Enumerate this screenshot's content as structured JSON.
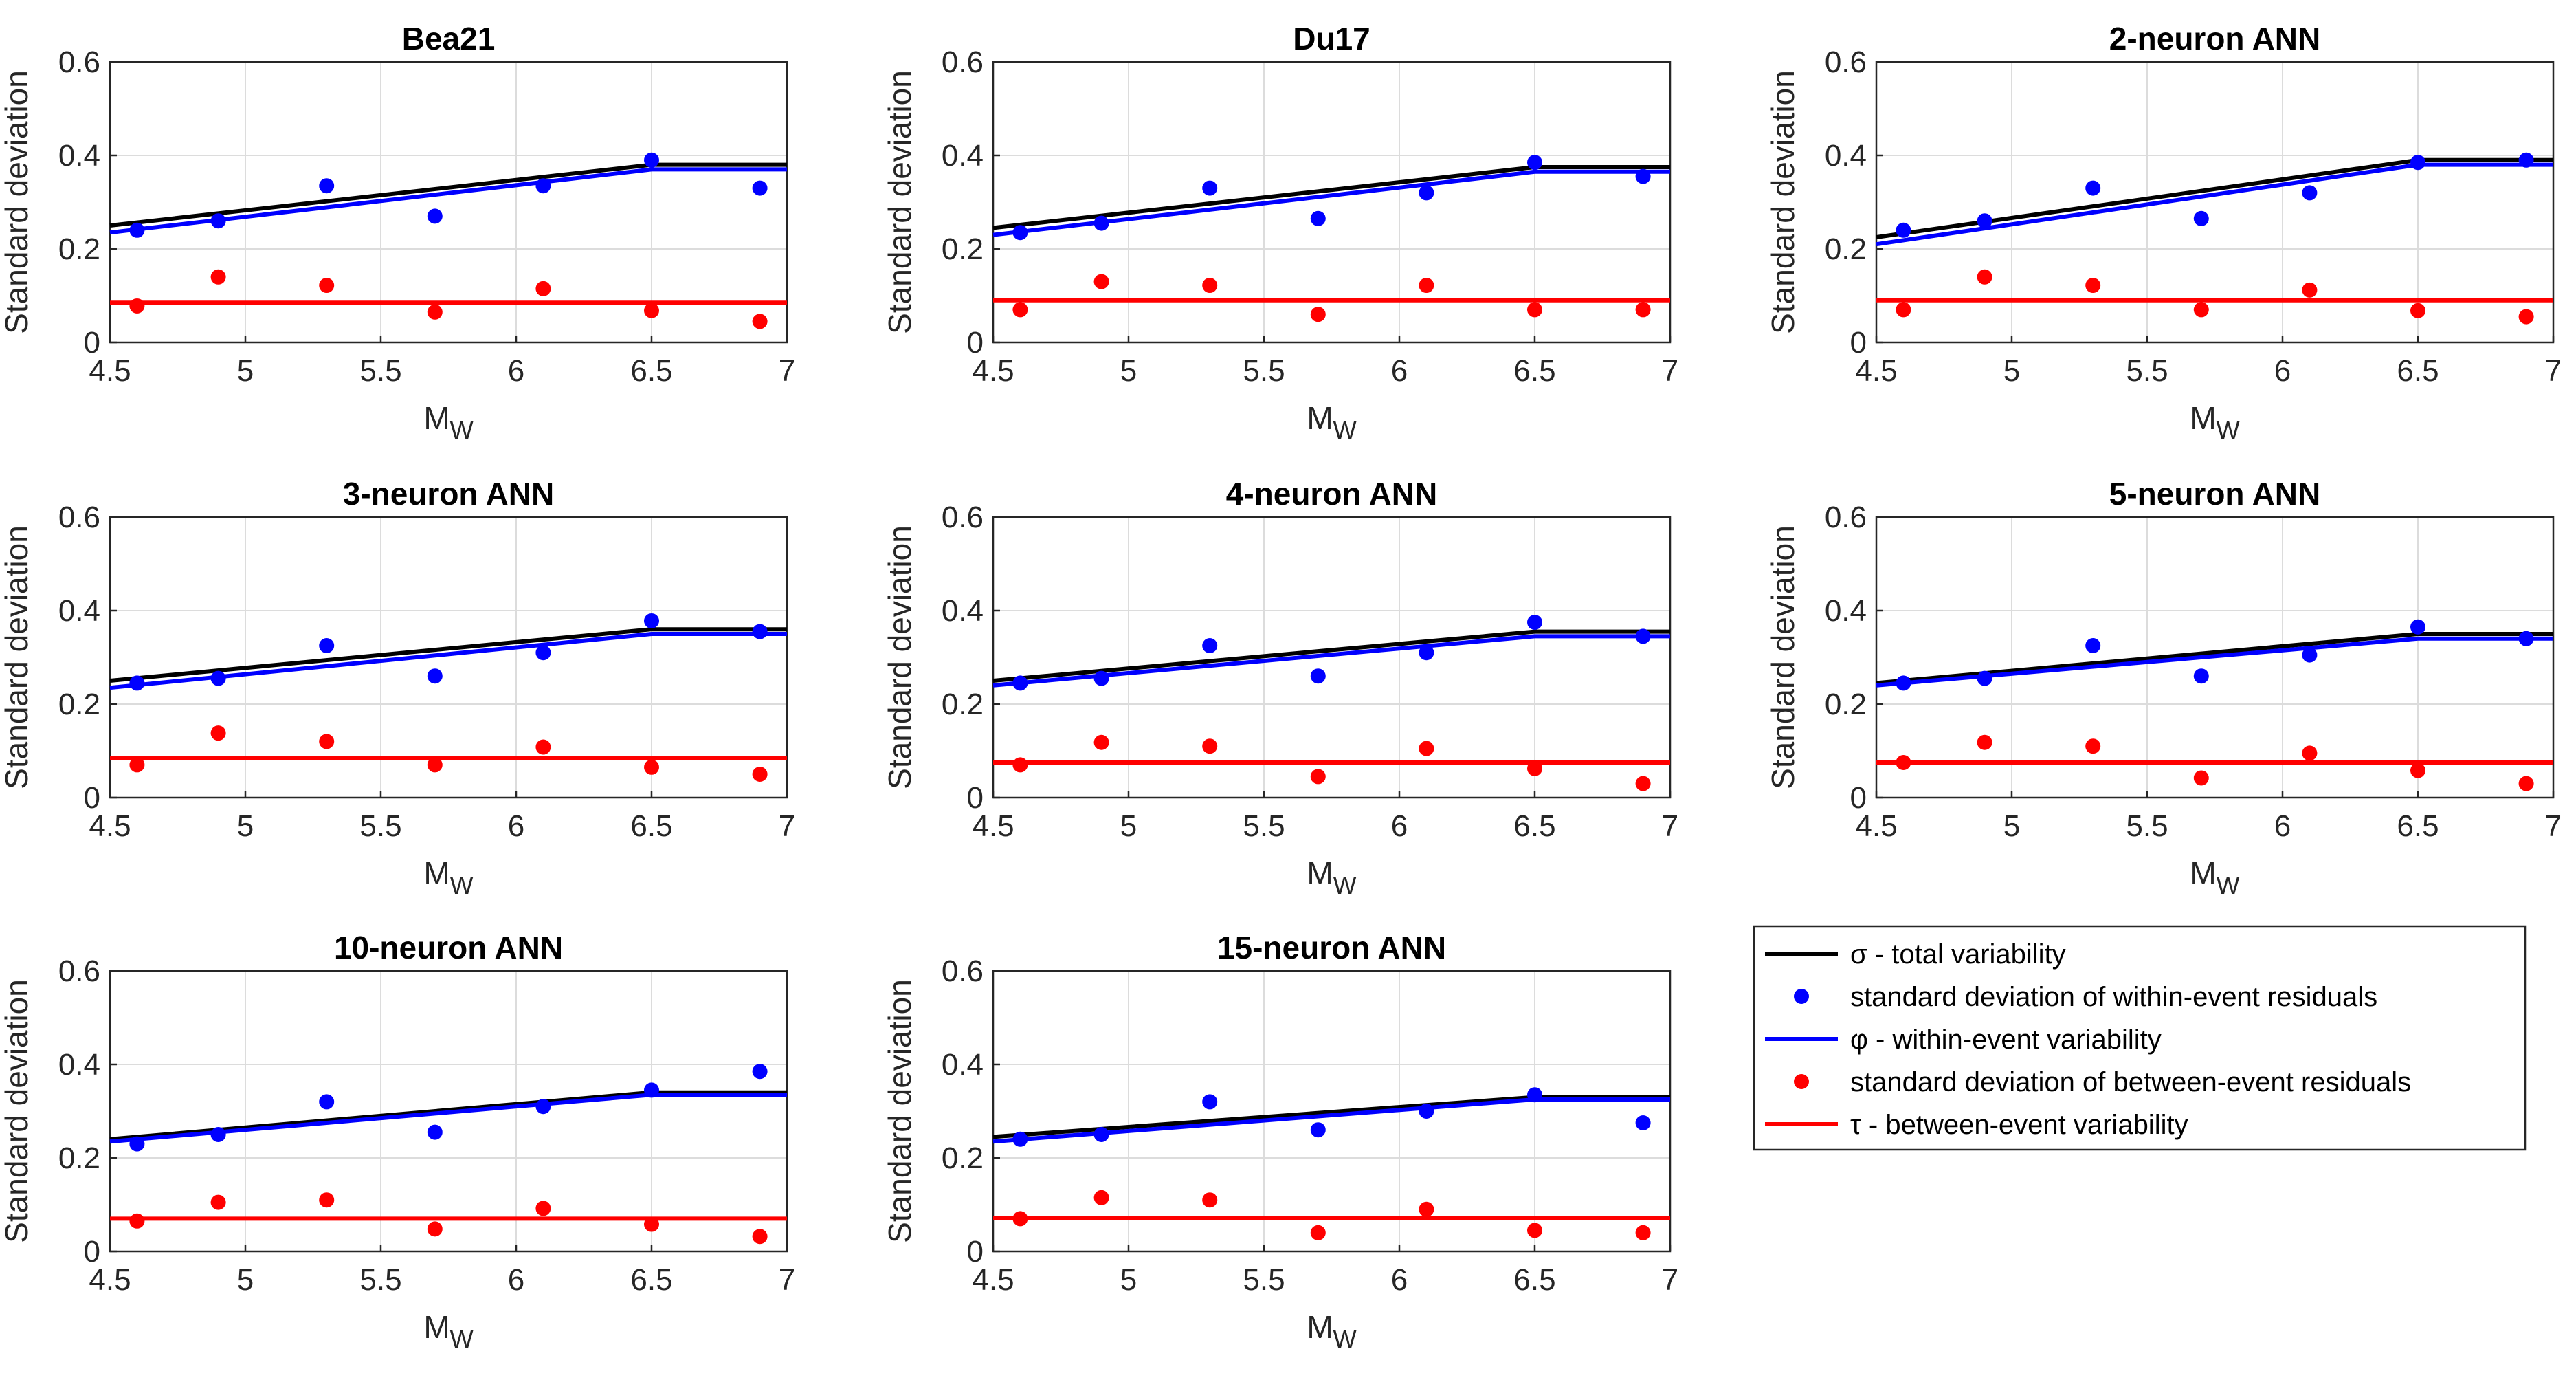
{
  "chart_data": {
    "type": "line",
    "xlim": [
      4.5,
      7
    ],
    "ylim": [
      0,
      0.6
    ],
    "xticks": [
      "4.5",
      "5",
      "5.5",
      "6",
      "6.5",
      "7"
    ],
    "yticks": [
      "0",
      "0.2",
      "0.4",
      "0.6"
    ],
    "xlabel_main": "M",
    "xlabel_sub": "W",
    "ylabel": "Standard deviation",
    "legend": {
      "position": "bottom-right",
      "entries": [
        {
          "label": "σ - total variability",
          "kind": "line",
          "color": "#000000"
        },
        {
          "label": "standard deviation of within-event residuals",
          "kind": "marker",
          "color": "#0000ff"
        },
        {
          "label": "φ - within-event variability",
          "kind": "line",
          "color": "#0000ff"
        },
        {
          "label": "standard deviation of between-event residuals",
          "kind": "marker",
          "color": "#ff0000"
        },
        {
          "label": "τ - between-event variability",
          "kind": "line",
          "color": "#ff0000"
        }
      ]
    },
    "panels": [
      {
        "title": "Bea21",
        "sigma": {
          "x": [
            4.5,
            6.5,
            7
          ],
          "y": [
            0.25,
            0.38,
            0.38
          ]
        },
        "phi": {
          "x": [
            4.5,
            6.5,
            7
          ],
          "y": [
            0.235,
            0.37,
            0.37
          ]
        },
        "tau": {
          "x": [
            4.5,
            7
          ],
          "y": [
            0.085,
            0.085
          ]
        },
        "within_points": {
          "x": [
            4.6,
            4.9,
            5.3,
            5.7,
            6.1,
            6.5,
            6.9
          ],
          "y": [
            0.24,
            0.26,
            0.335,
            0.27,
            0.335,
            0.39,
            0.33
          ]
        },
        "between_points": {
          "x": [
            4.6,
            4.9,
            5.3,
            5.7,
            6.1,
            6.5,
            6.9
          ],
          "y": [
            0.078,
            0.14,
            0.122,
            0.065,
            0.115,
            0.068,
            0.045
          ]
        }
      },
      {
        "title": "Du17",
        "sigma": {
          "x": [
            4.5,
            6.5,
            7
          ],
          "y": [
            0.245,
            0.375,
            0.375
          ]
        },
        "phi": {
          "x": [
            4.5,
            6.5,
            7
          ],
          "y": [
            0.23,
            0.365,
            0.365
          ]
        },
        "tau": {
          "x": [
            4.5,
            7
          ],
          "y": [
            0.09,
            0.09
          ]
        },
        "within_points": {
          "x": [
            4.6,
            4.9,
            5.3,
            5.7,
            6.1,
            6.5,
            6.9
          ],
          "y": [
            0.235,
            0.255,
            0.33,
            0.265,
            0.32,
            0.385,
            0.355
          ]
        },
        "between_points": {
          "x": [
            4.6,
            4.9,
            5.3,
            5.7,
            6.1,
            6.5,
            6.9
          ],
          "y": [
            0.07,
            0.13,
            0.122,
            0.06,
            0.122,
            0.07,
            0.07
          ]
        }
      },
      {
        "title": "2-neuron ANN",
        "sigma": {
          "x": [
            4.5,
            6.5,
            7
          ],
          "y": [
            0.225,
            0.39,
            0.39
          ]
        },
        "phi": {
          "x": [
            4.5,
            6.5,
            7
          ],
          "y": [
            0.21,
            0.38,
            0.38
          ]
        },
        "tau": {
          "x": [
            4.5,
            7
          ],
          "y": [
            0.09,
            0.09
          ]
        },
        "within_points": {
          "x": [
            4.6,
            4.9,
            5.3,
            5.7,
            6.1,
            6.5,
            6.9
          ],
          "y": [
            0.24,
            0.26,
            0.33,
            0.265,
            0.32,
            0.385,
            0.39
          ]
        },
        "between_points": {
          "x": [
            4.6,
            4.9,
            5.3,
            5.7,
            6.1,
            6.5,
            6.9
          ],
          "y": [
            0.07,
            0.14,
            0.122,
            0.07,
            0.112,
            0.068,
            0.055
          ]
        }
      },
      {
        "title": "3-neuron ANN",
        "sigma": {
          "x": [
            4.5,
            6.5,
            7
          ],
          "y": [
            0.25,
            0.36,
            0.36
          ]
        },
        "phi": {
          "x": [
            4.5,
            6.5,
            7
          ],
          "y": [
            0.235,
            0.35,
            0.35
          ]
        },
        "tau": {
          "x": [
            4.5,
            7
          ],
          "y": [
            0.085,
            0.085
          ]
        },
        "within_points": {
          "x": [
            4.6,
            4.9,
            5.3,
            5.7,
            6.1,
            6.5,
            6.9
          ],
          "y": [
            0.245,
            0.255,
            0.325,
            0.26,
            0.31,
            0.378,
            0.355
          ]
        },
        "between_points": {
          "x": [
            4.6,
            4.9,
            5.3,
            5.7,
            6.1,
            6.5,
            6.9
          ],
          "y": [
            0.07,
            0.138,
            0.12,
            0.07,
            0.108,
            0.065,
            0.05
          ]
        }
      },
      {
        "title": "4-neuron ANN",
        "sigma": {
          "x": [
            4.5,
            6.5,
            7
          ],
          "y": [
            0.25,
            0.355,
            0.355
          ]
        },
        "phi": {
          "x": [
            4.5,
            6.5,
            7
          ],
          "y": [
            0.24,
            0.345,
            0.345
          ]
        },
        "tau": {
          "x": [
            4.5,
            7
          ],
          "y": [
            0.075,
            0.075
          ]
        },
        "within_points": {
          "x": [
            4.6,
            4.9,
            5.3,
            5.7,
            6.1,
            6.5,
            6.9
          ],
          "y": [
            0.245,
            0.255,
            0.325,
            0.26,
            0.31,
            0.375,
            0.345
          ]
        },
        "between_points": {
          "x": [
            4.6,
            4.9,
            5.3,
            5.7,
            6.1,
            6.5,
            6.9
          ],
          "y": [
            0.07,
            0.118,
            0.11,
            0.045,
            0.105,
            0.062,
            0.03
          ]
        }
      },
      {
        "title": "5-neuron ANN",
        "sigma": {
          "x": [
            4.5,
            6.5,
            7
          ],
          "y": [
            0.245,
            0.35,
            0.35
          ]
        },
        "phi": {
          "x": [
            4.5,
            6.5,
            7
          ],
          "y": [
            0.24,
            0.34,
            0.34
          ]
        },
        "tau": {
          "x": [
            4.5,
            7
          ],
          "y": [
            0.075,
            0.075
          ]
        },
        "within_points": {
          "x": [
            4.6,
            4.9,
            5.3,
            5.7,
            6.1,
            6.5,
            6.9
          ],
          "y": [
            0.245,
            0.255,
            0.325,
            0.26,
            0.305,
            0.365,
            0.34
          ]
        },
        "between_points": {
          "x": [
            4.6,
            4.9,
            5.3,
            5.7,
            6.1,
            6.5,
            6.9
          ],
          "y": [
            0.075,
            0.118,
            0.11,
            0.042,
            0.095,
            0.058,
            0.03
          ]
        }
      },
      {
        "title": "10-neuron ANN",
        "sigma": {
          "x": [
            4.5,
            6.5,
            7
          ],
          "y": [
            0.24,
            0.34,
            0.34
          ]
        },
        "phi": {
          "x": [
            4.5,
            6.5,
            7
          ],
          "y": [
            0.235,
            0.335,
            0.335
          ]
        },
        "tau": {
          "x": [
            4.5,
            7
          ],
          "y": [
            0.07,
            0.07
          ]
        },
        "within_points": {
          "x": [
            4.6,
            4.9,
            5.3,
            5.7,
            6.1,
            6.5,
            6.9
          ],
          "y": [
            0.23,
            0.25,
            0.32,
            0.255,
            0.31,
            0.345,
            0.385
          ]
        },
        "between_points": {
          "x": [
            4.6,
            4.9,
            5.3,
            5.7,
            6.1,
            6.5,
            6.9
          ],
          "y": [
            0.065,
            0.105,
            0.11,
            0.048,
            0.092,
            0.058,
            0.032
          ]
        }
      },
      {
        "title": "15-neuron ANN",
        "sigma": {
          "x": [
            4.5,
            6.5,
            7
          ],
          "y": [
            0.245,
            0.33,
            0.33
          ]
        },
        "phi": {
          "x": [
            4.5,
            6.5,
            7
          ],
          "y": [
            0.235,
            0.325,
            0.325
          ]
        },
        "tau": {
          "x": [
            4.5,
            7
          ],
          "y": [
            0.072,
            0.072
          ]
        },
        "within_points": {
          "x": [
            4.6,
            4.9,
            5.3,
            5.7,
            6.1,
            6.5,
            6.9
          ],
          "y": [
            0.24,
            0.25,
            0.32,
            0.26,
            0.3,
            0.335,
            0.275
          ]
        },
        "between_points": {
          "x": [
            4.6,
            4.9,
            5.3,
            5.7,
            6.1,
            6.5,
            6.9
          ],
          "y": [
            0.07,
            0.115,
            0.11,
            0.04,
            0.09,
            0.045,
            0.04
          ]
        }
      }
    ]
  }
}
